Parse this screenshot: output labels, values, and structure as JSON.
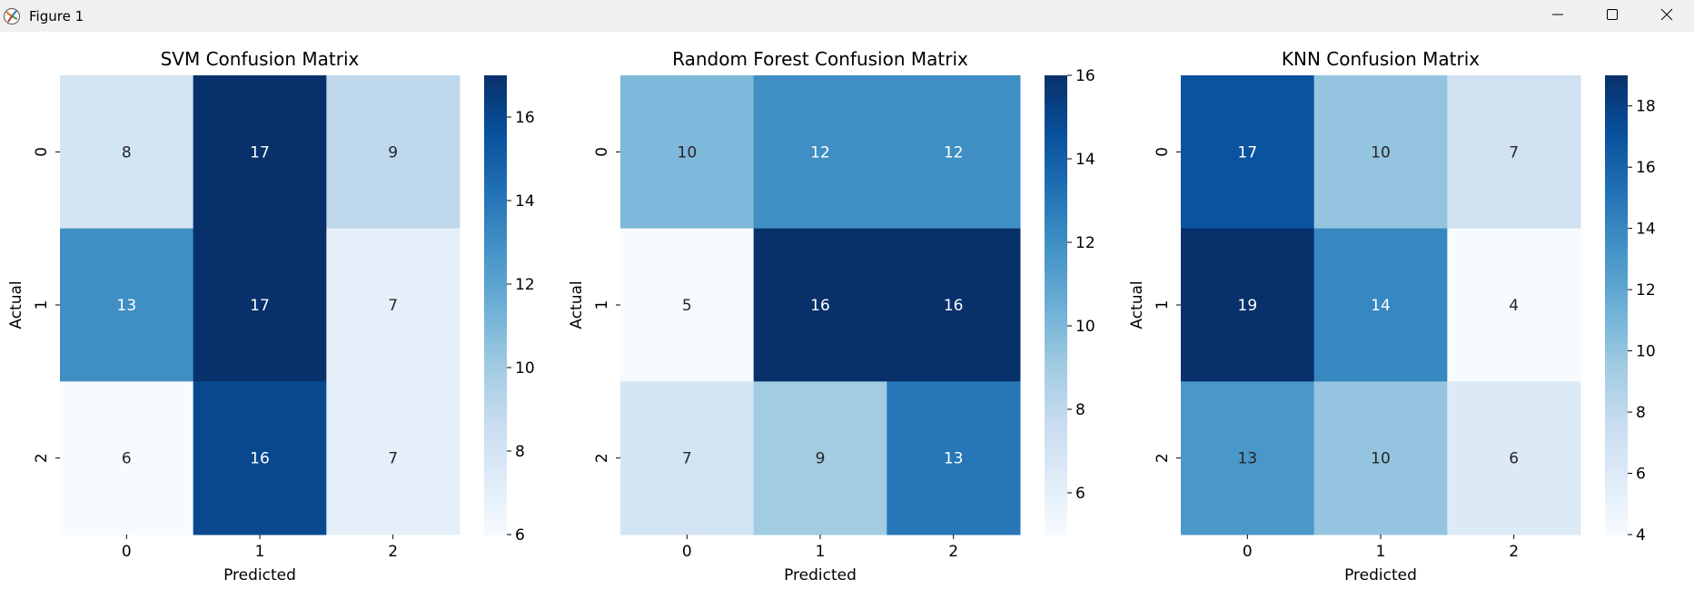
{
  "window": {
    "title": "Figure 1"
  },
  "icons": {
    "app": "matplotlib-figure-icon",
    "minimize": "minimize-icon",
    "maximize": "maximize-icon",
    "close": "close-icon"
  },
  "chart_data": [
    {
      "type": "heatmap",
      "title": "SVM Confusion Matrix",
      "xlabel": "Predicted",
      "ylabel": "Actual",
      "x_categories": [
        "0",
        "1",
        "2"
      ],
      "y_categories": [
        "0",
        "1",
        "2"
      ],
      "values": [
        [
          8,
          17,
          9
        ],
        [
          13,
          17,
          7
        ],
        [
          6,
          16,
          7
        ]
      ],
      "colormap": "Blues",
      "vmin": 6,
      "vmax": 17,
      "colorbar_ticks": [
        "6",
        "8",
        "10",
        "12",
        "14",
        "16"
      ]
    },
    {
      "type": "heatmap",
      "title": "Random Forest Confusion Matrix",
      "xlabel": "Predicted",
      "ylabel": "Actual",
      "x_categories": [
        "0",
        "1",
        "2"
      ],
      "y_categories": [
        "0",
        "1",
        "2"
      ],
      "values": [
        [
          10,
          12,
          12
        ],
        [
          5,
          16,
          16
        ],
        [
          7,
          9,
          13
        ]
      ],
      "colormap": "Blues",
      "vmin": 5,
      "vmax": 16,
      "colorbar_ticks": [
        "6",
        "8",
        "10",
        "12",
        "14",
        "16"
      ]
    },
    {
      "type": "heatmap",
      "title": "KNN Confusion Matrix",
      "xlabel": "Predicted",
      "ylabel": "Actual",
      "x_categories": [
        "0",
        "1",
        "2"
      ],
      "y_categories": [
        "0",
        "1",
        "2"
      ],
      "values": [
        [
          17,
          10,
          7
        ],
        [
          19,
          14,
          4
        ],
        [
          13,
          10,
          6
        ]
      ],
      "colormap": "Blues",
      "vmin": 4,
      "vmax": 19,
      "colorbar_ticks": [
        "4",
        "6",
        "8",
        "10",
        "12",
        "14",
        "16",
        "18"
      ]
    }
  ]
}
